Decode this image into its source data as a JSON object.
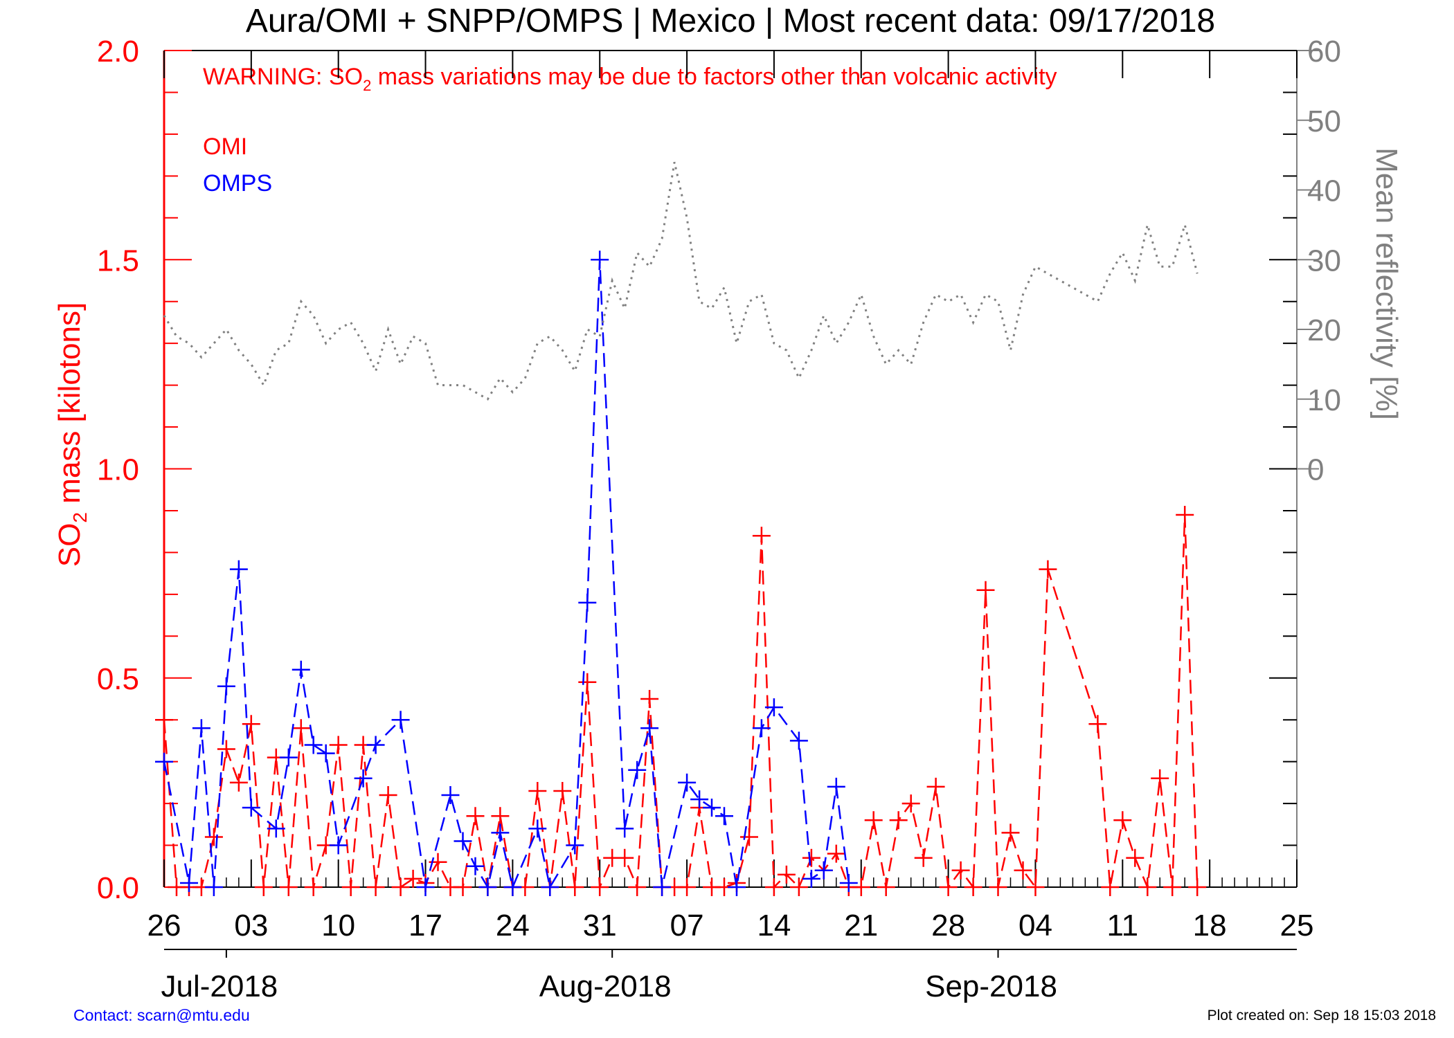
{
  "title": "Aura/OMI + SNPP/OMPS | Mexico | Most recent data: 09/17/2018",
  "warning": {
    "prefix": "WARNING: SO",
    "sub": "2",
    "suffix": " mass variations may be due to factors other than volcanic activity"
  },
  "legend": [
    {
      "label": "OMI",
      "color": "#ff0000"
    },
    {
      "label": "OMPS",
      "color": "#0000ff"
    }
  ],
  "left_axis": {
    "label_prefix": "SO",
    "label_sub": "2",
    "label_suffix": " mass [kilotons]",
    "ticks": [
      "0.0",
      "0.5",
      "1.0",
      "1.5",
      "2.0"
    ],
    "color": "#ff0000"
  },
  "right_axis": {
    "label": "Mean reflectivity [%]",
    "ticks": [
      "0",
      "10",
      "20",
      "30",
      "40",
      "50",
      "60"
    ],
    "color": "#808080"
  },
  "x_axis": {
    "day_labels": [
      "26",
      "03",
      "10",
      "17",
      "24",
      "31",
      "07",
      "14",
      "21",
      "28",
      "04",
      "11",
      "18",
      "25"
    ],
    "month_labels": [
      "Jul-2018",
      "Aug-2018",
      "Sep-2018"
    ]
  },
  "footer": {
    "contact": "Contact: scarn@mtu.edu",
    "created": "Plot created on: Sep 18 15:03 2018"
  },
  "chart_data": {
    "type": "line",
    "x_unit": "date",
    "x_range": [
      "2018-06-26",
      "2018-09-25"
    ],
    "ylim_left": [
      0,
      2.0
    ],
    "ylim_right": [
      -60,
      60
    ],
    "series": [
      {
        "name": "OMI",
        "axis": "left",
        "color": "#ff0000",
        "style": "dashed",
        "marker": "+",
        "points": [
          [
            "2018-06-26",
            0.3
          ],
          [
            "2018-06-26",
            0.4
          ],
          [
            "2018-06-27",
            0.0
          ],
          [
            "2018-06-28",
            0.0
          ],
          [
            "2018-06-29",
            0.0
          ],
          [
            "2018-06-30",
            0.12
          ],
          [
            "2018-07-01",
            0.33
          ],
          [
            "2018-07-02",
            0.25
          ],
          [
            "2018-07-03",
            0.39
          ],
          [
            "2018-07-04",
            0.0
          ],
          [
            "2018-07-05",
            0.31
          ],
          [
            "2018-07-06",
            0.0
          ],
          [
            "2018-07-07",
            0.38
          ],
          [
            "2018-07-08",
            0.0
          ],
          [
            "2018-07-09",
            0.1
          ],
          [
            "2018-07-10",
            0.34
          ],
          [
            "2018-07-11",
            0.0
          ],
          [
            "2018-07-12",
            0.34
          ],
          [
            "2018-07-13",
            0.0
          ],
          [
            "2018-07-14",
            0.22
          ],
          [
            "2018-07-15",
            0.0
          ],
          [
            "2018-07-16",
            0.02
          ],
          [
            "2018-07-17",
            0.01
          ],
          [
            "2018-07-18",
            0.06
          ],
          [
            "2018-07-19",
            0.0
          ],
          [
            "2018-07-20",
            0.0
          ],
          [
            "2018-07-21",
            0.17
          ],
          [
            "2018-07-22",
            0.0
          ],
          [
            "2018-07-23",
            0.17
          ],
          [
            "2018-07-24",
            0.0
          ],
          [
            "2018-07-25",
            0.0
          ],
          [
            "2018-07-26",
            0.23
          ],
          [
            "2018-07-27",
            0.0
          ],
          [
            "2018-07-28",
            0.23
          ],
          [
            "2018-07-29",
            0.0
          ],
          [
            "2018-07-30",
            0.49
          ],
          [
            "2018-07-31",
            0.0
          ],
          [
            "2018-08-01",
            0.07
          ],
          [
            "2018-08-02",
            0.07
          ],
          [
            "2018-08-03",
            0.0
          ],
          [
            "2018-08-04",
            0.45
          ],
          [
            "2018-08-05",
            0.0
          ],
          [
            "2018-08-06",
            0.0
          ],
          [
            "2018-08-07",
            0.0
          ],
          [
            "2018-08-08",
            0.19
          ],
          [
            "2018-08-09",
            0.0
          ],
          [
            "2018-08-10",
            0.0
          ],
          [
            "2018-08-11",
            0.01
          ],
          [
            "2018-08-12",
            0.12
          ],
          [
            "2018-08-13",
            0.84
          ],
          [
            "2018-08-14",
            0.0
          ],
          [
            "2018-08-15",
            0.03
          ],
          [
            "2018-08-16",
            0.0
          ],
          [
            "2018-08-17",
            0.07
          ],
          [
            "2018-08-18",
            0.04
          ],
          [
            "2018-08-19",
            0.08
          ],
          [
            "2018-08-20",
            0.0
          ],
          [
            "2018-08-21",
            0.0
          ],
          [
            "2018-08-22",
            0.16
          ],
          [
            "2018-08-23",
            0.0
          ],
          [
            "2018-08-24",
            0.16
          ],
          [
            "2018-08-25",
            0.2
          ],
          [
            "2018-08-26",
            0.07
          ],
          [
            "2018-08-27",
            0.24
          ],
          [
            "2018-08-28",
            0.0
          ],
          [
            "2018-08-29",
            0.04
          ],
          [
            "2018-08-30",
            0.0
          ],
          [
            "2018-08-31",
            0.71
          ],
          [
            "2018-09-01",
            0.0
          ],
          [
            "2018-09-02",
            0.13
          ],
          [
            "2018-09-03",
            0.04
          ],
          [
            "2018-09-04",
            0.0
          ],
          [
            "2018-09-05",
            0.76
          ],
          [
            "2018-09-09",
            0.39
          ],
          [
            "2018-09-10",
            0.0
          ],
          [
            "2018-09-11",
            0.16
          ],
          [
            "2018-09-12",
            0.07
          ],
          [
            "2018-09-13",
            0.0
          ],
          [
            "2018-09-14",
            0.26
          ],
          [
            "2018-09-15",
            0.0
          ],
          [
            "2018-09-16",
            0.89
          ],
          [
            "2018-09-17",
            0.0
          ]
        ]
      },
      {
        "name": "OMPS",
        "axis": "left",
        "color": "#0000ff",
        "style": "dashed",
        "marker": "+",
        "points": [
          [
            "2018-06-26",
            0.3
          ],
          [
            "2018-06-28",
            0.01
          ],
          [
            "2018-06-29",
            0.38
          ],
          [
            "2018-06-30",
            0.0
          ],
          [
            "2018-07-01",
            0.48
          ],
          [
            "2018-07-02",
            0.76
          ],
          [
            "2018-07-03",
            0.19
          ],
          [
            "2018-07-05",
            0.14
          ],
          [
            "2018-07-06",
            0.31
          ],
          [
            "2018-07-07",
            0.52
          ],
          [
            "2018-07-08",
            0.34
          ],
          [
            "2018-07-09",
            0.32
          ],
          [
            "2018-07-10",
            0.1
          ],
          [
            "2018-07-12",
            0.26
          ],
          [
            "2018-07-13",
            0.34
          ],
          [
            "2018-07-15",
            0.4
          ],
          [
            "2018-07-17",
            0.0
          ],
          [
            "2018-07-19",
            0.22
          ],
          [
            "2018-07-20",
            0.11
          ],
          [
            "2018-07-21",
            0.05
          ],
          [
            "2018-07-22",
            0.0
          ],
          [
            "2018-07-23",
            0.13
          ],
          [
            "2018-07-24",
            0.0
          ],
          [
            "2018-07-26",
            0.14
          ],
          [
            "2018-07-27",
            0.0
          ],
          [
            "2018-07-29",
            0.1
          ],
          [
            "2018-07-30",
            0.68
          ],
          [
            "2018-07-31",
            1.5
          ],
          [
            "2018-08-02",
            0.14
          ],
          [
            "2018-08-03",
            0.28
          ],
          [
            "2018-08-04",
            0.38
          ],
          [
            "2018-08-05",
            0.0
          ],
          [
            "2018-08-07",
            0.25
          ],
          [
            "2018-08-08",
            0.21
          ],
          [
            "2018-08-09",
            0.19
          ],
          [
            "2018-08-10",
            0.17
          ],
          [
            "2018-08-11",
            0.0
          ],
          [
            "2018-08-13",
            0.38
          ],
          [
            "2018-08-14",
            0.43
          ],
          [
            "2018-08-16",
            0.35
          ],
          [
            "2018-08-17",
            0.02
          ],
          [
            "2018-08-18",
            0.04
          ],
          [
            "2018-08-19",
            0.24
          ],
          [
            "2018-08-20",
            0.01
          ]
        ]
      },
      {
        "name": "Mean reflectivity",
        "axis": "right",
        "color": "#808080",
        "style": "dotted",
        "points": [
          [
            "2018-06-26",
            22
          ],
          [
            "2018-06-27",
            19
          ],
          [
            "2018-06-28",
            18
          ],
          [
            "2018-06-29",
            16
          ],
          [
            "2018-06-30",
            18
          ],
          [
            "2018-07-01",
            20
          ],
          [
            "2018-07-02",
            17
          ],
          [
            "2018-07-03",
            15
          ],
          [
            "2018-07-04",
            12
          ],
          [
            "2018-07-05",
            17
          ],
          [
            "2018-07-06",
            18
          ],
          [
            "2018-07-07",
            24
          ],
          [
            "2018-07-08",
            22
          ],
          [
            "2018-07-09",
            18
          ],
          [
            "2018-07-10",
            20
          ],
          [
            "2018-07-11",
            21
          ],
          [
            "2018-07-12",
            18
          ],
          [
            "2018-07-13",
            14
          ],
          [
            "2018-07-14",
            20
          ],
          [
            "2018-07-15",
            15
          ],
          [
            "2018-07-16",
            19
          ],
          [
            "2018-07-17",
            18
          ],
          [
            "2018-07-18",
            12
          ],
          [
            "2018-07-19",
            12
          ],
          [
            "2018-07-20",
            12
          ],
          [
            "2018-07-21",
            11
          ],
          [
            "2018-07-22",
            10
          ],
          [
            "2018-07-23",
            13
          ],
          [
            "2018-07-24",
            11
          ],
          [
            "2018-07-25",
            13
          ],
          [
            "2018-07-26",
            18
          ],
          [
            "2018-07-27",
            19
          ],
          [
            "2018-07-28",
            17
          ],
          [
            "2018-07-29",
            14
          ],
          [
            "2018-07-30",
            20
          ],
          [
            "2018-07-31",
            19
          ],
          [
            "2018-08-01",
            27
          ],
          [
            "2018-08-02",
            23
          ],
          [
            "2018-08-03",
            31
          ],
          [
            "2018-08-04",
            29
          ],
          [
            "2018-08-05",
            33
          ],
          [
            "2018-08-06",
            44
          ],
          [
            "2018-08-07",
            36
          ],
          [
            "2018-08-08",
            24
          ],
          [
            "2018-08-09",
            23
          ],
          [
            "2018-08-10",
            26
          ],
          [
            "2018-08-11",
            18
          ],
          [
            "2018-08-12",
            24
          ],
          [
            "2018-08-13",
            25
          ],
          [
            "2018-08-14",
            18
          ],
          [
            "2018-08-15",
            17
          ],
          [
            "2018-08-16",
            13
          ],
          [
            "2018-08-17",
            17
          ],
          [
            "2018-08-18",
            22
          ],
          [
            "2018-08-19",
            18
          ],
          [
            "2018-08-20",
            21
          ],
          [
            "2018-08-21",
            25
          ],
          [
            "2018-08-22",
            19
          ],
          [
            "2018-08-23",
            15
          ],
          [
            "2018-08-24",
            17
          ],
          [
            "2018-08-25",
            15
          ],
          [
            "2018-08-26",
            21
          ],
          [
            "2018-08-27",
            25
          ],
          [
            "2018-08-28",
            24
          ],
          [
            "2018-08-29",
            25
          ],
          [
            "2018-08-30",
            21
          ],
          [
            "2018-08-31",
            25
          ],
          [
            "2018-09-01",
            24
          ],
          [
            "2018-09-02",
            17
          ],
          [
            "2018-09-03",
            25
          ],
          [
            "2018-09-04",
            29
          ],
          [
            "2018-09-05",
            28
          ],
          [
            "2018-09-06",
            27
          ],
          [
            "2018-09-07",
            26
          ],
          [
            "2018-09-08",
            25
          ],
          [
            "2018-09-09",
            24
          ],
          [
            "2018-09-10",
            28
          ],
          [
            "2018-09-11",
            31
          ],
          [
            "2018-09-12",
            27
          ],
          [
            "2018-09-13",
            35
          ],
          [
            "2018-09-14",
            29
          ],
          [
            "2018-09-15",
            29
          ],
          [
            "2018-09-16",
            35
          ],
          [
            "2018-09-17",
            28
          ]
        ]
      }
    ]
  }
}
